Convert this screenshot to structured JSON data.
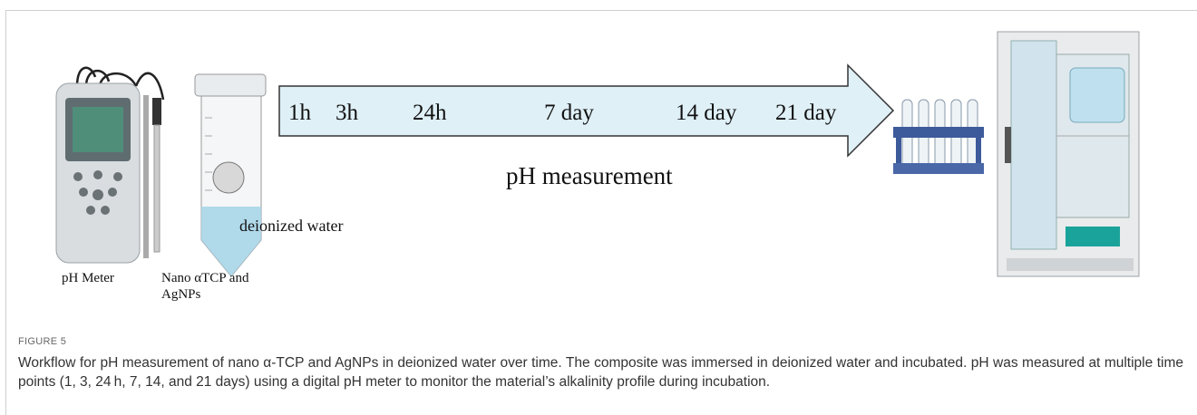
{
  "figure": {
    "timepoints": [
      "1h",
      "3h",
      "24h",
      "7 day",
      "14 day",
      "21 day"
    ],
    "arrow_label": "pH measurement",
    "water_label": "deionized water",
    "meter_label": "pH Meter",
    "sample_label": [
      "Nano αTCP and",
      "AgNPs"
    ],
    "number": "FIGURE 5",
    "caption": "Workflow for pH measurement of nano α-TCP and AgNPs in deionized water over time. The composite was immersed in deionized water and incubated. pH was measured at multiple time points (1, 3, 24 h, 7, 14, and 21 days) using a digital pH meter to monitor the material’s alkalinity profile during incubation."
  }
}
